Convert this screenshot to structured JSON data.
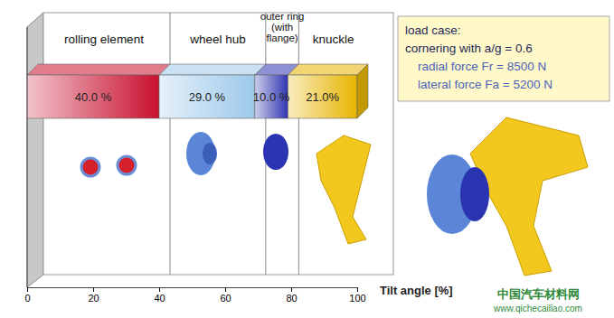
{
  "chart_data": {
    "type": "bar",
    "orientation": "horizontal",
    "stacked": true,
    "data_labels": true,
    "tick_labels": "x",
    "x_label": "Tilt angle [%]",
    "categories": [
      null
    ],
    "xlim": [
      0,
      100
    ],
    "xticks": [
      0,
      20,
      40,
      60,
      80,
      100
    ],
    "series": [
      {
        "name": "rolling element",
        "color": "#c8102e",
        "values": [
          40
        ],
        "value_labels": [
          "40.0 %"
        ]
      },
      {
        "name": "wheel hub",
        "color": "#9cc8ea",
        "values": [
          29
        ],
        "value_labels": [
          "29.0 %"
        ]
      },
      {
        "name": "outer ring\n(with\nflange)",
        "color": "#3236b0",
        "values": [
          10
        ],
        "value_labels": [
          "10.0 %"
        ]
      },
      {
        "name": "knuckle",
        "color": "#e6b400",
        "values": [
          21
        ],
        "value_labels": [
          "21.0%"
        ]
      }
    ],
    "annotations": [
      "load case:",
      "cornering with a/g = 0.6",
      "radial force  Fr = 8500 N",
      "lateral force Fa = 5200 N"
    ],
    "watermarks": [
      "中国汽车材料网",
      "www.qichecailiao.com"
    ]
  }
}
